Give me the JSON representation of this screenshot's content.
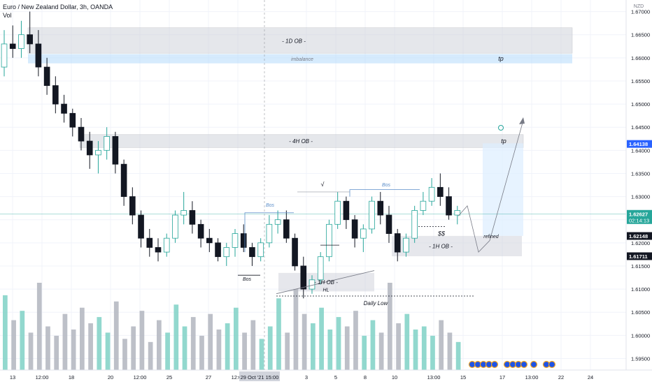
{
  "header": {
    "symbol_title": "Euro / New Zealand Dollar, 3h, OANDA",
    "indicator": "Vol",
    "currency": "NZD"
  },
  "colors": {
    "bull": "#26a69a",
    "bear": "#131722",
    "grid": "#f0f3fa",
    "zone_ob": "#d1d4dc",
    "zone_imbalance": "#bbdefb",
    "tp_box": "#ddeeff",
    "price_line": "#26a69a",
    "vol_bull": "#7fd1c6",
    "vol_bear": "#b2b5be",
    "annotation_blue": "#5b8ec9",
    "tag_current": "#2962ff",
    "tag_level": "#131722"
  },
  "chart_data": {
    "type": "candlestick",
    "title": "Euro / New Zealand Dollar, 3h, OANDA",
    "y_unit": "NZD",
    "ylim": [
      1.5925,
      1.6725
    ],
    "y_ticks": [
      "1.67000",
      "1.66500",
      "1.66000",
      "1.65500",
      "1.65000",
      "1.64500",
      "1.64000",
      "1.63500",
      "1.63000",
      "1.62500",
      "1.62000",
      "1.61500",
      "1.61000",
      "1.60500",
      "1.60000",
      "1.59500"
    ],
    "x_ticks": [
      "13",
      "12:00",
      "18",
      "20",
      "12:00",
      "25",
      "27",
      "12:00",
      "3",
      "5",
      "8",
      "10",
      "13:00",
      "15",
      "17",
      "13:00",
      "22",
      "24"
    ],
    "crosshair_label": "29 Oct '21  15:00",
    "current_price": {
      "value": "1.62627",
      "countdown": "02:14:13"
    },
    "price_tags": [
      {
        "value": "1.64138",
        "style": "blue"
      },
      {
        "value": "1.62148",
        "style": "dark"
      },
      {
        "value": "1.61711",
        "style": "dark"
      }
    ],
    "ohlc": [
      [
        1.658,
        1.666,
        1.656,
        1.663
      ],
      [
        1.663,
        1.667,
        1.66,
        1.662
      ],
      [
        1.662,
        1.668,
        1.66,
        1.665
      ],
      [
        1.665,
        1.67,
        1.661,
        1.663
      ],
      [
        1.663,
        1.666,
        1.656,
        1.658
      ],
      [
        1.658,
        1.66,
        1.652,
        1.654
      ],
      [
        1.654,
        1.656,
        1.648,
        1.65
      ],
      [
        1.65,
        1.652,
        1.646,
        1.648
      ],
      [
        1.648,
        1.649,
        1.643,
        1.645
      ],
      [
        1.645,
        1.647,
        1.64,
        1.642
      ],
      [
        1.642,
        1.644,
        1.636,
        1.639
      ],
      [
        1.639,
        1.642,
        1.635,
        1.64
      ],
      [
        1.64,
        1.645,
        1.638,
        1.643
      ],
      [
        1.643,
        1.644,
        1.635,
        1.637
      ],
      [
        1.637,
        1.638,
        1.628,
        1.63
      ],
      [
        1.63,
        1.632,
        1.624,
        1.626
      ],
      [
        1.626,
        1.627,
        1.619,
        1.621
      ],
      [
        1.621,
        1.623,
        1.617,
        1.619
      ],
      [
        1.619,
        1.621,
        1.616,
        1.618
      ],
      [
        1.618,
        1.622,
        1.617,
        1.621
      ],
      [
        1.621,
        1.627,
        1.62,
        1.626
      ],
      [
        1.626,
        1.631,
        1.624,
        1.627
      ],
      [
        1.627,
        1.629,
        1.622,
        1.624
      ],
      [
        1.624,
        1.625,
        1.619,
        1.621
      ],
      [
        1.621,
        1.623,
        1.618,
        1.62
      ],
      [
        1.62,
        1.621,
        1.616,
        1.617
      ],
      [
        1.617,
        1.62,
        1.615,
        1.619
      ],
      [
        1.619,
        1.623,
        1.617,
        1.622
      ],
      [
        1.622,
        1.624,
        1.618,
        1.619
      ],
      [
        1.619,
        1.62,
        1.615,
        1.617
      ],
      [
        1.617,
        1.621,
        1.616,
        1.62
      ],
      [
        1.62,
        1.626,
        1.619,
        1.624
      ],
      [
        1.624,
        1.627,
        1.622,
        1.625
      ],
      [
        1.625,
        1.627,
        1.62,
        1.621
      ],
      [
        1.621,
        1.622,
        1.614,
        1.615
      ],
      [
        1.615,
        1.617,
        1.608,
        1.61
      ],
      [
        1.61,
        1.613,
        1.609,
        1.612
      ],
      [
        1.612,
        1.618,
        1.611,
        1.617
      ],
      [
        1.617,
        1.625,
        1.616,
        1.624
      ],
      [
        1.624,
        1.631,
        1.623,
        1.629
      ],
      [
        1.629,
        1.63,
        1.623,
        1.625
      ],
      [
        1.625,
        1.626,
        1.619,
        1.621
      ],
      [
        1.621,
        1.624,
        1.618,
        1.623
      ],
      [
        1.623,
        1.63,
        1.622,
        1.629
      ],
      [
        1.629,
        1.631,
        1.624,
        1.626
      ],
      [
        1.626,
        1.628,
        1.62,
        1.622
      ],
      [
        1.622,
        1.623,
        1.616,
        1.618
      ],
      [
        1.618,
        1.622,
        1.617,
        1.621
      ],
      [
        1.621,
        1.628,
        1.62,
        1.627
      ],
      [
        1.627,
        1.631,
        1.626,
        1.629
      ],
      [
        1.629,
        1.634,
        1.628,
        1.632
      ],
      [
        1.632,
        1.635,
        1.628,
        1.63
      ],
      [
        1.63,
        1.632,
        1.625,
        1.626
      ],
      [
        1.626,
        1.628,
        1.624,
        1.627
      ]
    ],
    "volume": [
      120,
      80,
      95,
      60,
      140,
      70,
      55,
      90,
      65,
      100,
      75,
      85,
      60,
      110,
      50,
      70,
      95,
      45,
      80,
      60,
      105,
      70,
      85,
      55,
      90,
      65,
      75,
      100,
      60,
      80,
      50,
      70,
      115,
      60,
      130,
      90,
      75,
      100,
      65,
      85,
      70,
      95,
      55,
      80,
      60,
      140,
      75,
      90,
      65,
      70,
      55,
      80,
      60,
      45
    ],
    "annotations": [
      "- 1D OB -",
      "imbalance",
      "tp",
      "- 4H OB -",
      "tp",
      "Bos",
      "Bos",
      "Bos",
      "√",
      "$$",
      "- 1H OB -",
      "- 1H OB -",
      "HL",
      "Daily Low",
      "refined"
    ]
  }
}
